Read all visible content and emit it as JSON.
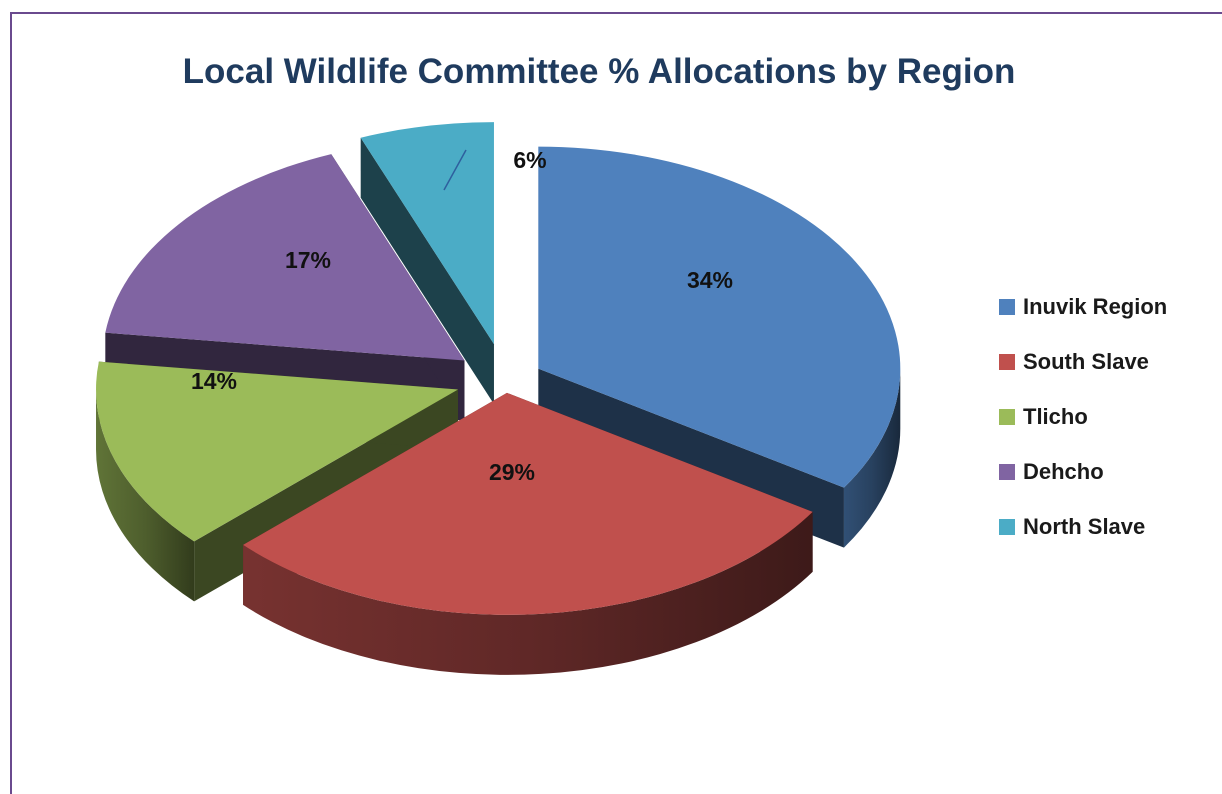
{
  "chart_data": {
    "type": "pie",
    "title": "Local Wildlife Committee % Allocations by Region",
    "categories": [
      "Inuvik Region",
      "South Slave",
      "Tlicho",
      "Dehcho",
      "North Slave"
    ],
    "values": [
      34,
      29,
      14,
      17,
      6
    ],
    "data_labels": [
      "34%",
      "29%",
      "14%",
      "17%",
      "6%"
    ],
    "colors": [
      "#4f81bd",
      "#c0504d",
      "#9bbb59",
      "#8064a2",
      "#4bacc6"
    ],
    "exploded": true,
    "three_d": true,
    "legend_position": "right"
  }
}
